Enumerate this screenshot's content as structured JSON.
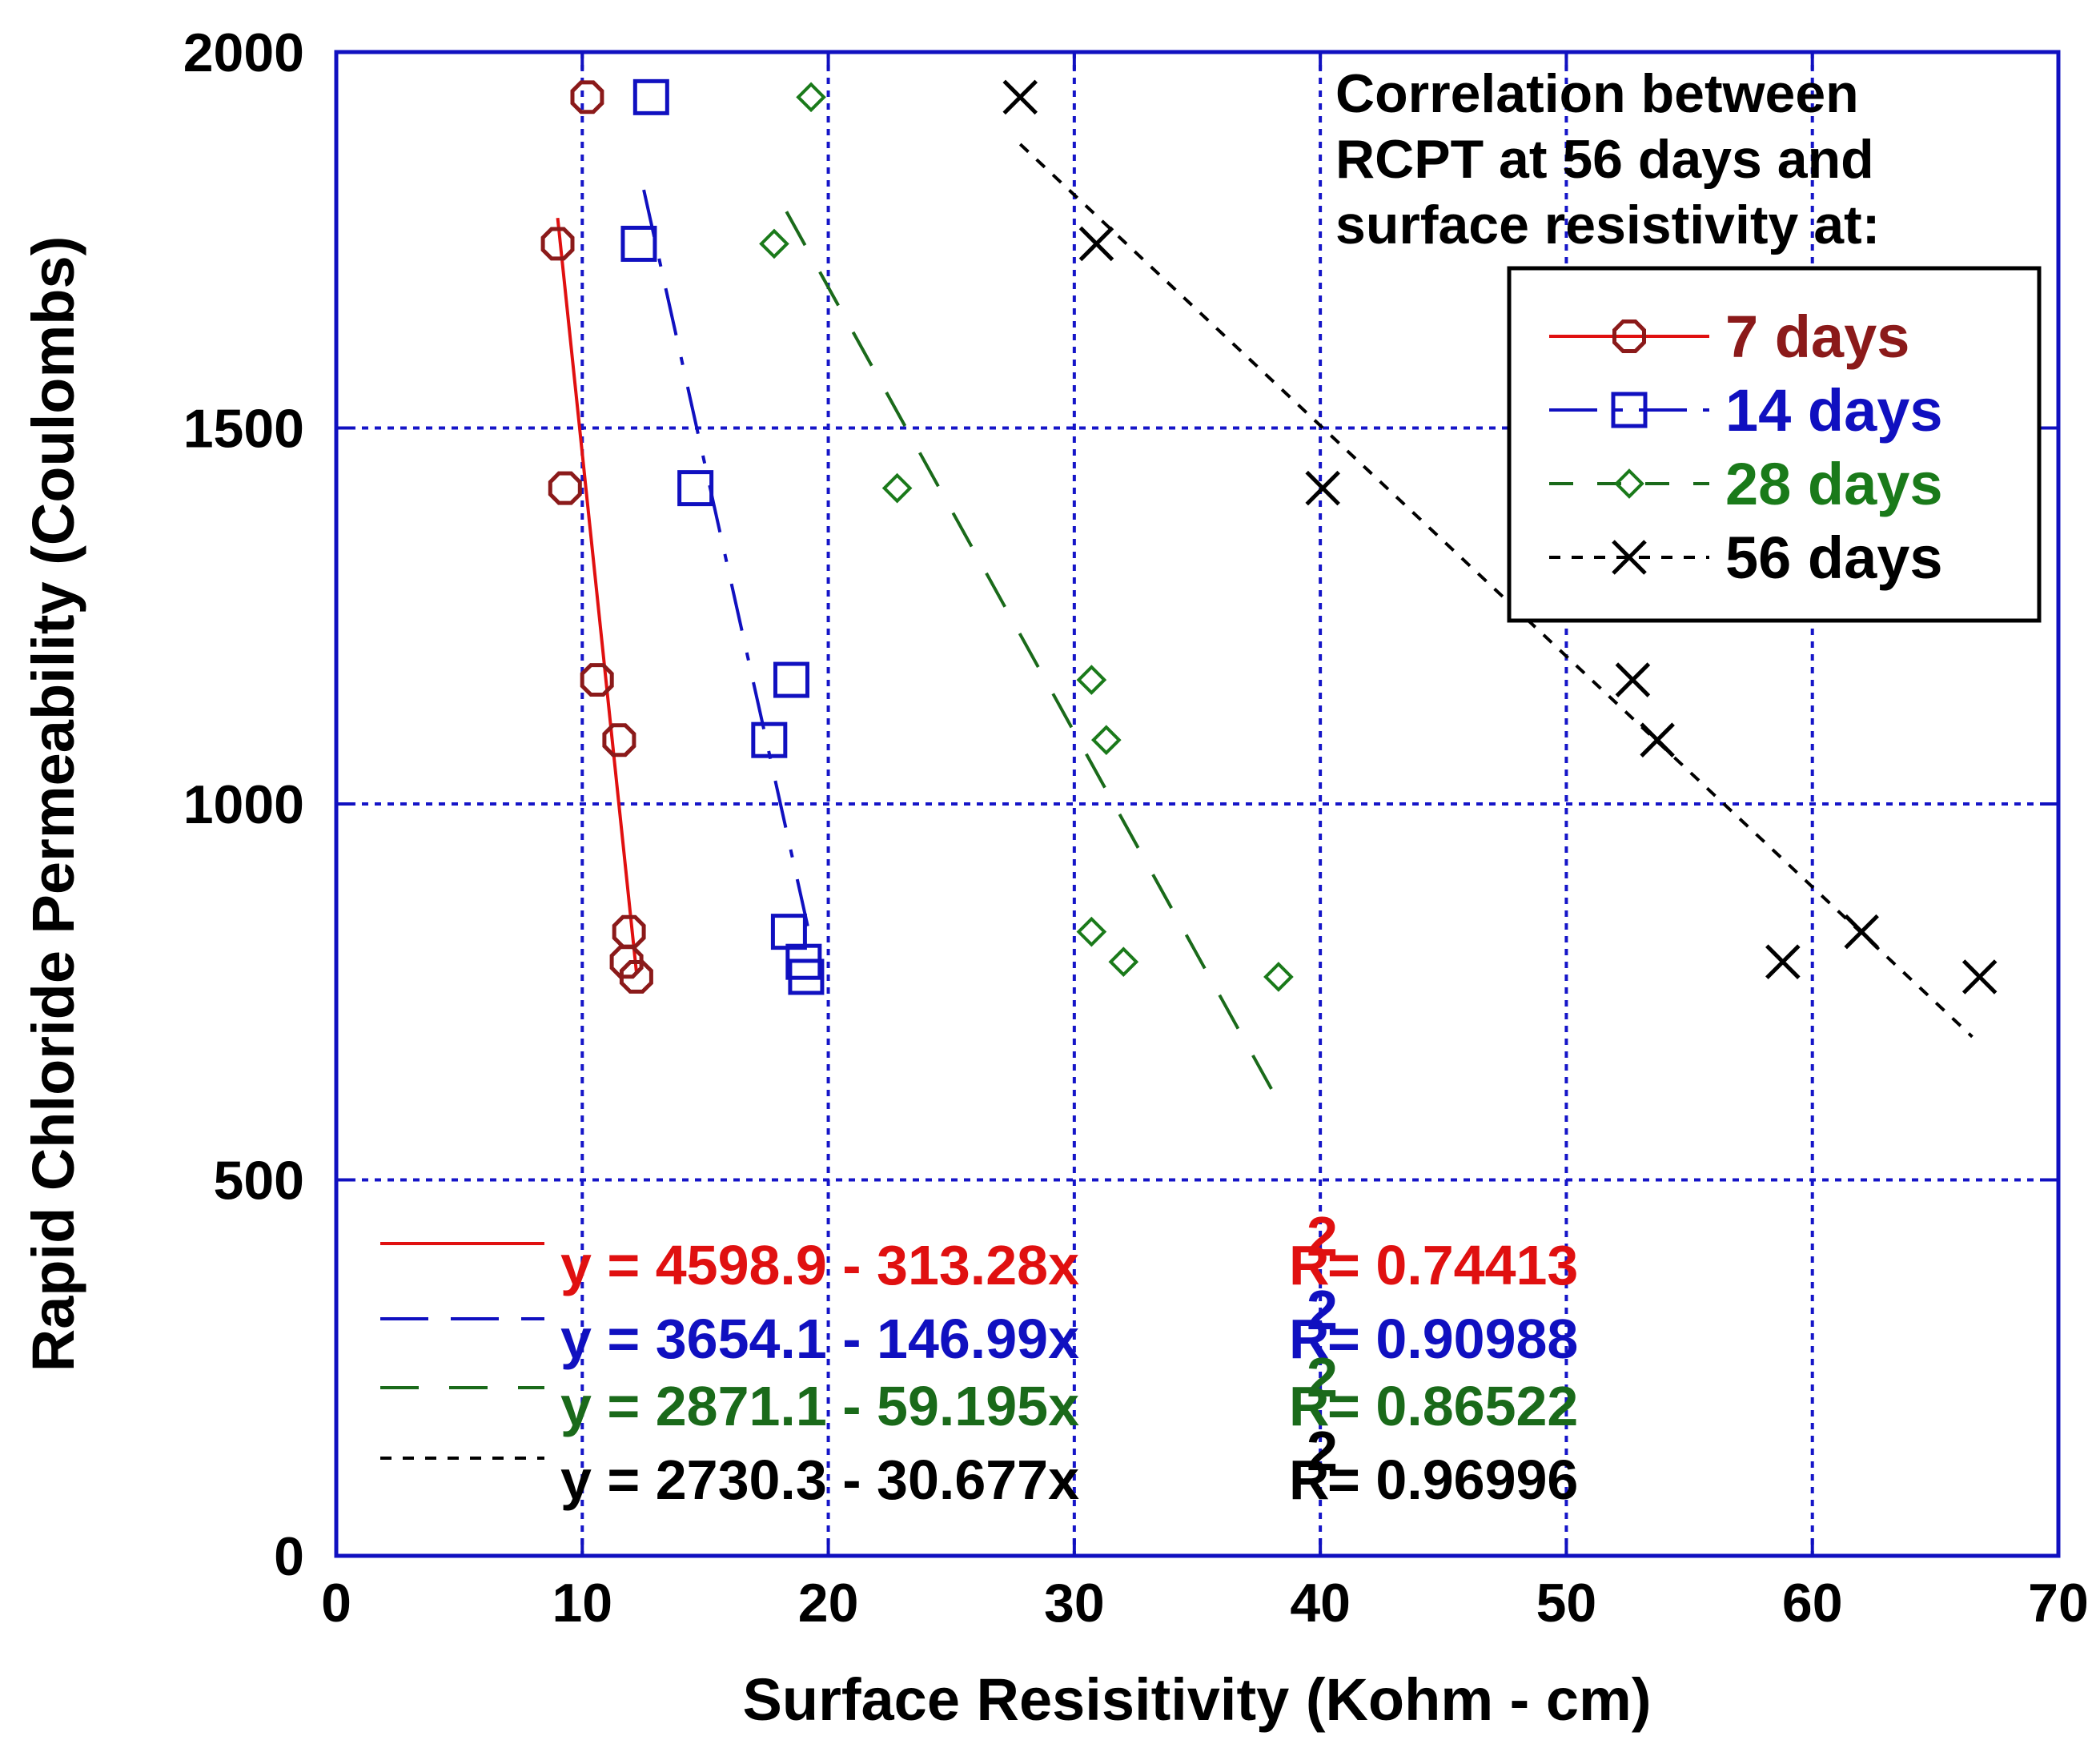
{
  "chart_data": {
    "type": "scatter",
    "title": "",
    "xlabel": "Surface Resisitivity (Kohm - cm)",
    "ylabel": "Rapid Chloride Permeability (Coulombs)",
    "xlim": [
      0,
      70
    ],
    "ylim": [
      0,
      2000
    ],
    "x_ticks": [
      0,
      10,
      20,
      30,
      40,
      50,
      60,
      70
    ],
    "y_ticks": [
      0,
      500,
      1000,
      1500,
      2000
    ],
    "x_tick_labels": [
      "0",
      "10",
      "20",
      "30",
      "40",
      "50",
      "60",
      "70"
    ],
    "y_tick_labels": [
      "0",
      "500",
      "1000",
      "1500",
      "2000"
    ],
    "grid": true,
    "annotation": [
      "Correlation between",
      "RCPT at 56 days and",
      "surface resistivity at:"
    ],
    "legend_position": "top-right",
    "series": [
      {
        "name": "7 days",
        "color": "#8b1a1a",
        "fit_color": "#e01010",
        "marker": "circle",
        "fit_dash": "",
        "x": [
          10.2,
          9.0,
          9.3,
          10.6,
          11.5,
          11.9,
          11.8,
          12.2
        ],
        "y": [
          1940,
          1745,
          1420,
          1165,
          1085,
          830,
          790,
          770
        ],
        "fit": {
          "intercept": 4598.9,
          "slope": -313.28,
          "x_range": [
            9.0,
            12.2
          ]
        },
        "equation": "y = 4598.9 - 313.28x",
        "r2_label": "R",
        "r2_exp": "2",
        "r2_value": "= 0.74413"
      },
      {
        "name": "14 days",
        "color": "#1010c0",
        "fit_color": "#1010c0",
        "marker": "square",
        "fit_dash": "60 28 10 28",
        "x": [
          12.8,
          12.3,
          14.6,
          18.5,
          17.6,
          18.4,
          19.0,
          19.1
        ],
        "y": [
          1940,
          1745,
          1420,
          1165,
          1085,
          830,
          790,
          770
        ],
        "fit": {
          "intercept": 3654.1,
          "slope": -146.99,
          "x_range": [
            12.5,
            19.3
          ]
        },
        "equation": "y = 3654.1 - 146.99x",
        "r2_label": "R",
        "r2_exp": "2",
        "r2_value": "= 0.90988"
      },
      {
        "name": "28 days",
        "color": "#1a7a1a",
        "fit_color": "#1a6a1a",
        "marker": "diamond",
        "fit_dash": "48 38",
        "x": [
          19.3,
          17.8,
          22.8,
          30.7,
          31.3,
          30.7,
          32.0,
          38.3
        ],
        "y": [
          1940,
          1745,
          1420,
          1165,
          1085,
          830,
          790,
          770
        ],
        "fit": {
          "intercept": 2871.1,
          "slope": -59.195,
          "x_range": [
            18.3,
            38.5
          ]
        },
        "equation": "y = 2871.1 - 59.195x",
        "r2_label": "R",
        "r2_exp": "2",
        "r2_value": "= 0.86522"
      },
      {
        "name": "56 days",
        "color": "#000000",
        "fit_color": "#000000",
        "marker": "x",
        "fit_dash": "14 14",
        "x": [
          27.8,
          30.9,
          40.1,
          52.7,
          53.7,
          58.8,
          62.0,
          66.8
        ],
        "y": [
          1940,
          1745,
          1420,
          1165,
          1085,
          790,
          830,
          770
        ],
        "fit": {
          "intercept": 2730.3,
          "slope": -30.677,
          "x_range": [
            27.8,
            66.5
          ]
        },
        "equation": "y = 2730.3 - 30.677x",
        "r2_label": "R",
        "r2_exp": "2",
        "r2_value": "= 0.96996"
      }
    ]
  }
}
